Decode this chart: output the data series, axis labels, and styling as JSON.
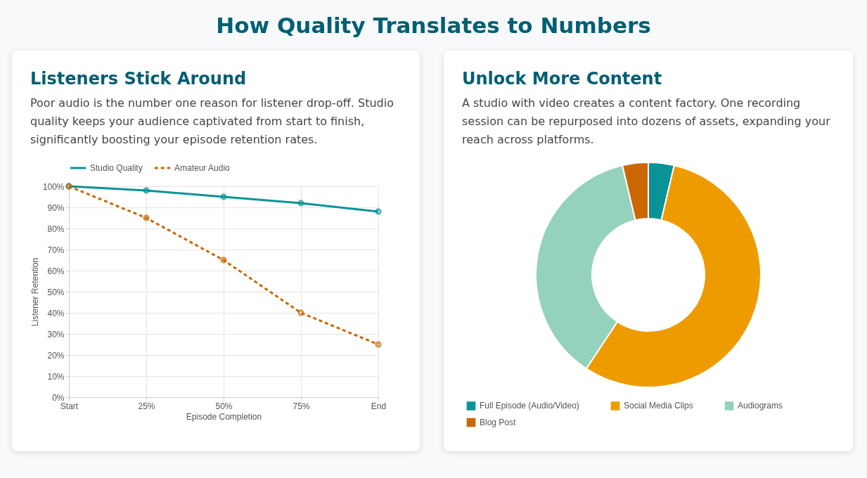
{
  "chart_data": [
    {
      "type": "line",
      "title": "Listeners Stick Around",
      "subtitle": "Poor audio is the number one reason for listener drop-off. Studio quality keeps your audience captivated from start to finish, significantly boosting your episode retention rates.",
      "annotations": [
        "How Quality Translates to Numbers"
      ],
      "xlabel": "Episode Completion",
      "ylabel": "Listener Retention",
      "categories": [
        "Start",
        "25%",
        "50%",
        "75%",
        "End"
      ],
      "series": [
        {
          "name": "Studio Quality",
          "color": "#0a9396",
          "line_style": "solid",
          "values": [
            100,
            98,
            95,
            92,
            88
          ]
        },
        {
          "name": "Amateur Audio",
          "color": "#ca6702",
          "line_style": "dashed",
          "values": [
            100,
            85,
            65,
            40,
            25
          ]
        }
      ],
      "ylim": [
        0,
        100
      ],
      "yticks": [
        {
          "value": 0,
          "label": "0%"
        },
        {
          "value": 10,
          "label": "10%"
        },
        {
          "value": 20,
          "label": "20%"
        },
        {
          "value": 30,
          "label": "30%"
        },
        {
          "value": 40,
          "label": "40%"
        },
        {
          "value": 50,
          "label": "50%"
        },
        {
          "value": 60,
          "label": "60%"
        },
        {
          "value": 70,
          "label": "70%"
        },
        {
          "value": 80,
          "label": "80%"
        },
        {
          "value": 90,
          "label": "90%"
        },
        {
          "value": 100,
          "label": "100%"
        }
      ],
      "grid": true,
      "legend": "top",
      "marker": "circle"
    },
    {
      "type": "donut",
      "title": "Unlock More Content",
      "subtitle": "A studio with video creates a content factory. One recording session can be repurposed into dozens of assets, expanding your reach across platforms.",
      "categories": [
        "Full Episode (Audio/Video)",
        "Social Media Clips",
        "Audiograms",
        "Blog Post"
      ],
      "values": [
        3.7,
        55.6,
        37.0,
        3.7
      ],
      "colors": [
        "#0a9396",
        "#ee9b00",
        "#94d2bd",
        "#ca6702"
      ],
      "legend": "bottom"
    }
  ]
}
